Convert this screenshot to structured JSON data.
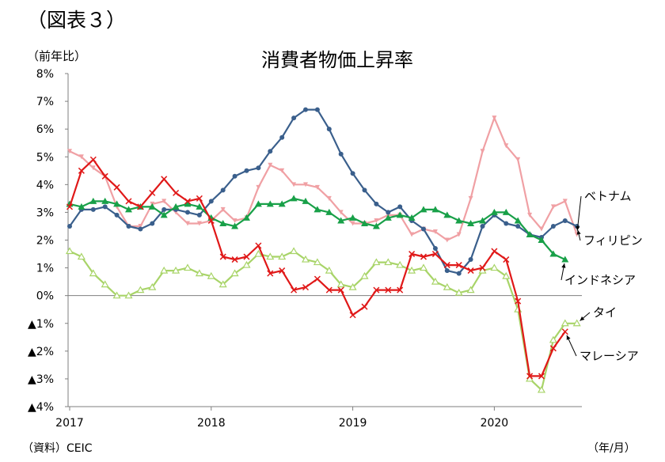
{
  "figure_label": "（図表３）",
  "y_unit_label": "（前年比）",
  "source": "（資料）CEIC",
  "x_unit_label": "（年/月）",
  "colors": {
    "ベトナム": "#f0a0a4",
    "フィリピン": "#3a5f8c",
    "インドネシア": "#18a048",
    "タイ": "#a8d468",
    "マレーシア": "#e01818"
  },
  "chart_data": {
    "type": "line",
    "title": "消費者物価上昇率",
    "ylabel": "（前年比）",
    "xlabel": "（年/月）",
    "ylim": [
      -4,
      8
    ],
    "y_ticks": [
      8,
      7,
      6,
      5,
      4,
      3,
      2,
      1,
      0,
      -1,
      -2,
      -3,
      -4
    ],
    "y_tick_labels": [
      "8%",
      "7%",
      "6%",
      "5%",
      "4%",
      "3%",
      "2%",
      "1%",
      "0%",
      "▲1%",
      "▲2%",
      "▲3%",
      "▲4%"
    ],
    "x_tick_labels": [
      "2017",
      "2018",
      "2019",
      "2020"
    ],
    "x_start": "2017-01",
    "grid": false,
    "legend": "direct-labels-right",
    "series": [
      {
        "name": "ベトナム",
        "marker": "triangle-down",
        "values": [
          5.2,
          5.0,
          4.6,
          4.3,
          3.2,
          2.5,
          2.5,
          3.3,
          3.4,
          3.0,
          2.6,
          2.6,
          2.7,
          3.1,
          2.7,
          2.8,
          3.9,
          4.7,
          4.5,
          4.0,
          4.0,
          3.9,
          3.5,
          3.0,
          2.6,
          2.6,
          2.7,
          2.9,
          2.9,
          2.2,
          2.4,
          2.3,
          2.0,
          2.2,
          3.5,
          5.2,
          6.4,
          5.4,
          4.9,
          2.9,
          2.4,
          3.2,
          3.4,
          2.2
        ]
      },
      {
        "name": "フィリピン",
        "marker": "circle",
        "values": [
          2.5,
          3.1,
          3.1,
          3.2,
          2.9,
          2.5,
          2.4,
          2.6,
          3.1,
          3.1,
          3.0,
          2.9,
          3.4,
          3.8,
          4.3,
          4.5,
          4.6,
          5.2,
          5.7,
          6.4,
          6.7,
          6.7,
          6.0,
          5.1,
          4.4,
          3.8,
          3.3,
          3.0,
          3.2,
          2.7,
          2.4,
          1.7,
          0.9,
          0.8,
          1.3,
          2.5,
          2.9,
          2.6,
          2.5,
          2.2,
          2.1,
          2.5,
          2.7,
          2.5
        ]
      },
      {
        "name": "インドネシア",
        "marker": "triangle-up",
        "values": [
          3.3,
          3.2,
          3.4,
          3.4,
          3.3,
          3.1,
          3.2,
          3.2,
          2.9,
          3.2,
          3.3,
          3.2,
          2.8,
          2.6,
          2.5,
          2.8,
          3.3,
          3.3,
          3.3,
          3.5,
          3.4,
          3.1,
          3.0,
          2.7,
          2.8,
          2.6,
          2.5,
          2.8,
          2.9,
          2.8,
          3.1,
          3.1,
          2.9,
          2.7,
          2.6,
          2.7,
          3.0,
          3.0,
          2.7,
          2.2,
          2.0,
          1.5,
          1.3
        ]
      },
      {
        "name": "タイ",
        "marker": "triangle-up-open",
        "values": [
          1.6,
          1.4,
          0.8,
          0.4,
          0.0,
          0.0,
          0.2,
          0.3,
          0.9,
          0.9,
          1.0,
          0.8,
          0.7,
          0.4,
          0.8,
          1.1,
          1.5,
          1.4,
          1.4,
          1.6,
          1.3,
          1.2,
          0.9,
          0.4,
          0.3,
          0.7,
          1.2,
          1.2,
          1.1,
          0.9,
          1.0,
          0.5,
          0.3,
          0.1,
          0.2,
          0.9,
          1.0,
          0.7,
          -0.5,
          -3.0,
          -3.4,
          -1.6,
          -1.0,
          -1.0
        ]
      },
      {
        "name": "マレーシア",
        "marker": "x",
        "values": [
          3.2,
          4.5,
          4.9,
          4.3,
          3.9,
          3.4,
          3.2,
          3.7,
          4.2,
          3.7,
          3.4,
          3.5,
          2.7,
          1.4,
          1.3,
          1.4,
          1.8,
          0.8,
          0.9,
          0.2,
          0.3,
          0.6,
          0.2,
          0.2,
          -0.7,
          -0.4,
          0.2,
          0.2,
          0.2,
          1.5,
          1.4,
          1.5,
          1.1,
          1.1,
          0.9,
          1.0,
          1.6,
          1.3,
          -0.2,
          -2.9,
          -2.9,
          -1.9,
          -1.3
        ]
      }
    ]
  }
}
